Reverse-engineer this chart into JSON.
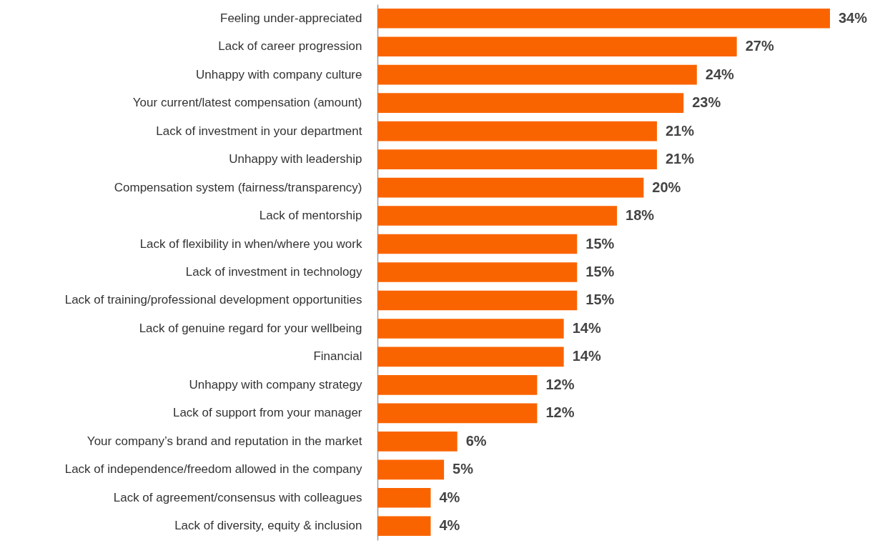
{
  "chart_data": {
    "type": "bar",
    "orientation": "horizontal",
    "color": "#fa6400",
    "value_labels": [
      "34%",
      "27%",
      "24%",
      "23%",
      "21%",
      "21%",
      "20%",
      "18%",
      "15%",
      "15%",
      "15%",
      "14%",
      "14%",
      "12%",
      "12%",
      "6%",
      "5%",
      "4%",
      "4%"
    ],
    "categories": [
      "Feeling under-appreciated",
      "Lack of career progression",
      "Unhappy with company culture",
      "Your current/latest compensation (amount)",
      "Lack of investment in your department",
      "Unhappy with leadership",
      "Compensation system (fairness/transparency)",
      "Lack of mentorship",
      "Lack of flexibility in when/where you work",
      "Lack of investment in technology",
      "Lack of training/professional development opportunities",
      "Lack of genuine regard for your wellbeing",
      "Financial",
      "Unhappy with company strategy",
      "Lack of support from your manager",
      "Your company’s brand and reputation in the market",
      "Lack of independence/freedom allowed in the company",
      "Lack of agreement/consensus with colleagues",
      "Lack of diversity, equity & inclusion"
    ],
    "values": [
      34,
      27,
      24,
      23,
      21,
      21,
      20,
      18,
      15,
      15,
      15,
      14,
      14,
      12,
      12,
      6,
      5,
      4,
      4
    ]
  }
}
